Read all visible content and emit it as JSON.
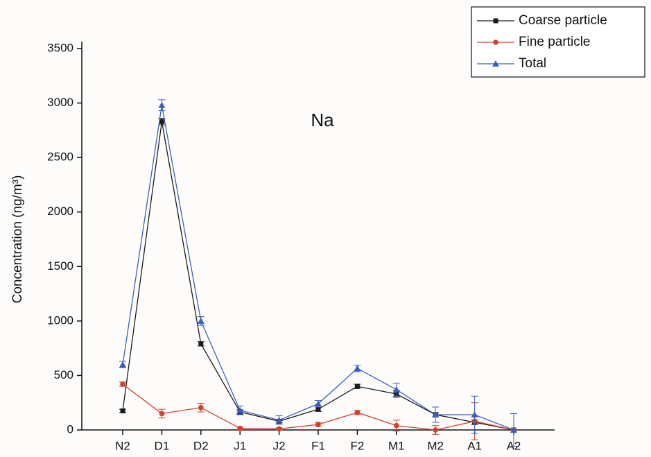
{
  "chart_data": {
    "type": "line",
    "annotation": "Na",
    "y_label": "Concentration (ng/m³)",
    "categories": [
      "N2",
      "D1",
      "D2",
      "J1",
      "J2",
      "F1",
      "F2",
      "M1",
      "M2",
      "A1",
      "A2"
    ],
    "series": [
      {
        "name": "Coarse particle",
        "color": "#1a1a1a",
        "marker": "square",
        "values": [
          175,
          2830,
          790,
          165,
          80,
          190,
          400,
          330,
          140,
          70,
          0
        ],
        "errors": [
          15,
          30,
          20,
          20,
          15,
          20,
          20,
          30,
          20,
          20,
          0
        ]
      },
      {
        "name": "Fine particle",
        "color": "#d0402a",
        "marker": "circle",
        "values": [
          420,
          150,
          205,
          15,
          10,
          50,
          160,
          40,
          0,
          80,
          0
        ],
        "errors": [
          20,
          40,
          40,
          10,
          10,
          20,
          20,
          50,
          40,
          170,
          150
        ]
      },
      {
        "name": "Total",
        "color": "#3a5fbf",
        "marker": "triangle",
        "values": [
          600,
          2980,
          1000,
          180,
          90,
          240,
          565,
          370,
          140,
          140,
          0
        ],
        "errors": [
          30,
          50,
          40,
          40,
          40,
          30,
          30,
          60,
          70,
          170,
          150
        ]
      }
    ],
    "ylim": [
      0,
      3500
    ],
    "yticks": [
      0,
      500,
      1000,
      1500,
      2000,
      2500,
      3000,
      3500
    ],
    "legend": "top-right",
    "grid": false
  }
}
